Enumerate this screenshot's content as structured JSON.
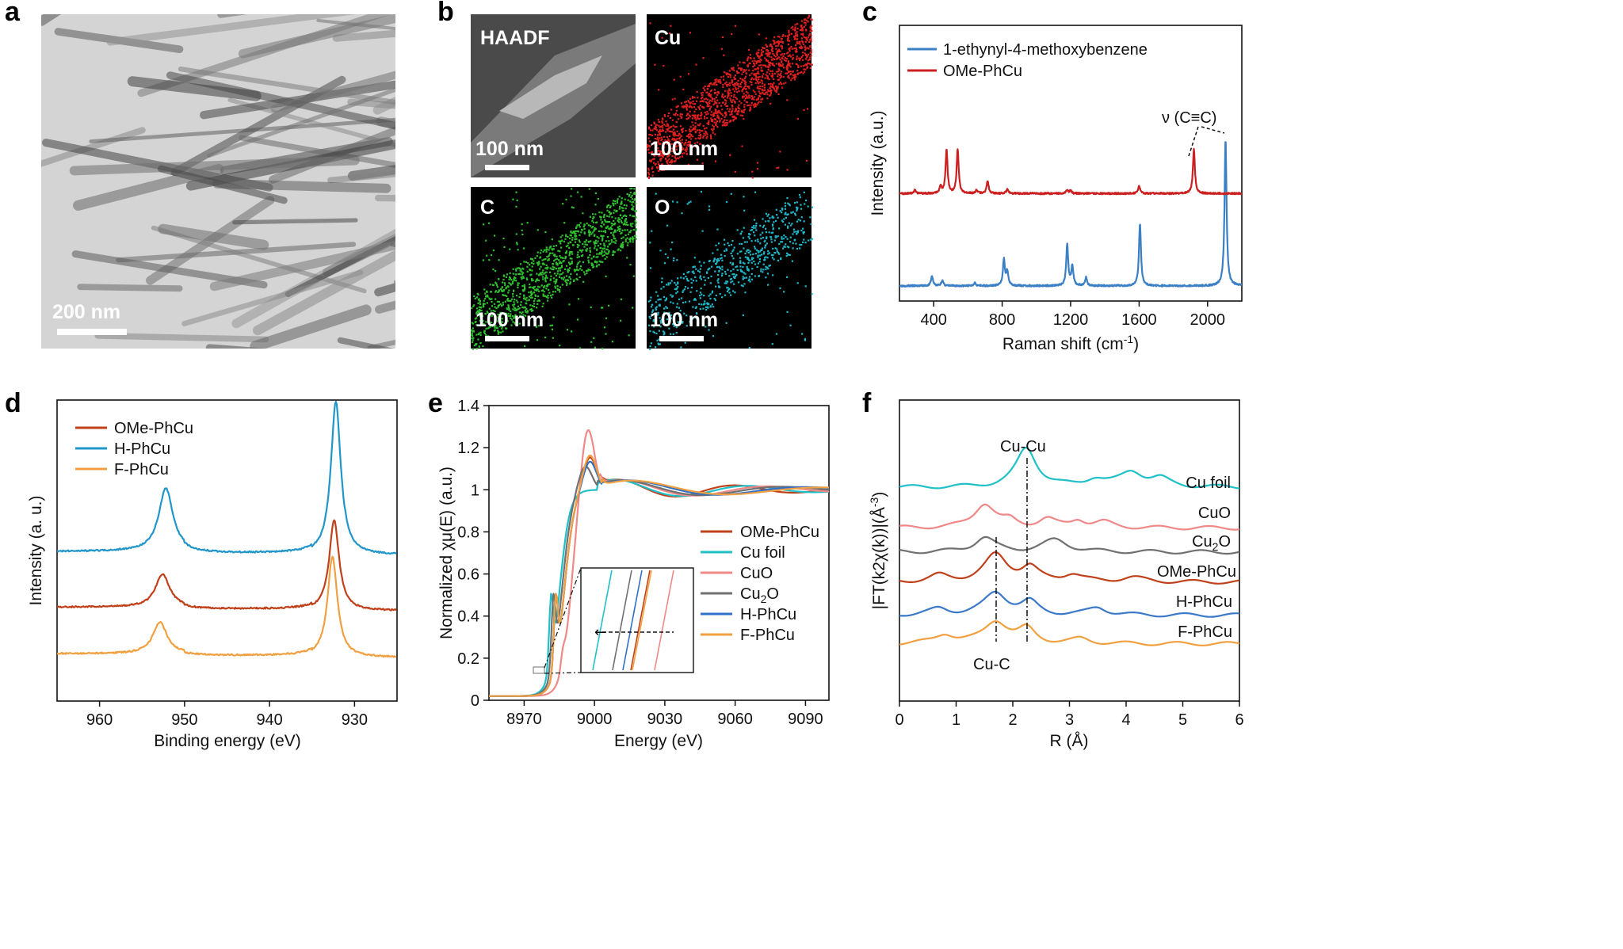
{
  "panels": {
    "a": {
      "letter": "a",
      "scale_label": "200 nm"
    },
    "b": {
      "letter": "b",
      "tiles": [
        {
          "label": "HAADF",
          "scale": "100 nm",
          "color": "#9a9a9a"
        },
        {
          "label": "Cu",
          "scale": "100 nm",
          "color": "#e02020"
        },
        {
          "label": "C",
          "scale": "100 nm",
          "color": "#30c030"
        },
        {
          "label": "O",
          "scale": "100 nm",
          "color": "#20b8c8"
        }
      ]
    },
    "c": {
      "letter": "c"
    },
    "d": {
      "letter": "d"
    },
    "e": {
      "letter": "e",
      "zoom_arrow": "←"
    },
    "f": {
      "letter": "f"
    }
  },
  "chart_data": [
    {
      "id": "c",
      "type": "line",
      "xlabel": "Raman shift (cm",
      "xlabel_sup": "-1",
      "xlabel_end": ")",
      "ylabel": "Intensity (a.u.)",
      "xlim": [
        200,
        2200
      ],
      "ylim": [
        0,
        10
      ],
      "xticks": [
        400,
        800,
        1200,
        1600,
        2000
      ],
      "annotation": "ν (C≡C)",
      "series": [
        {
          "name": "1-ethynyl-4-methoxybenzene",
          "color": "#3b7fc4",
          "baseline": 0.55,
          "peaks": [
            [
              390,
              0.35
            ],
            [
              450,
              0.2
            ],
            [
              640,
              0.12
            ],
            [
              810,
              0.95
            ],
            [
              830,
              0.5
            ],
            [
              1180,
              1.5
            ],
            [
              1210,
              0.7
            ],
            [
              1290,
              0.3
            ],
            [
              1605,
              2.25
            ],
            [
              2105,
              5.3
            ]
          ]
        },
        {
          "name": "OMe-PhCu",
          "color": "#cc2020",
          "baseline": 3.9,
          "peaks": [
            [
              290,
              0.12
            ],
            [
              440,
              0.25
            ],
            [
              475,
              1.6
            ],
            [
              540,
              1.6
            ],
            [
              650,
              0.12
            ],
            [
              715,
              0.45
            ],
            [
              830,
              0.15
            ],
            [
              1180,
              0.12
            ],
            [
              1200,
              0.1
            ],
            [
              1600,
              0.28
            ],
            [
              1920,
              1.6
            ]
          ]
        }
      ]
    },
    {
      "id": "d",
      "type": "line",
      "xlabel": "Binding energy (eV)",
      "ylabel": "Intensity (a. u.)",
      "xlim": [
        965,
        925
      ],
      "ylim": [
        0,
        10
      ],
      "xreversed": true,
      "xticks": [
        960,
        950,
        940,
        930
      ],
      "series": [
        {
          "name": "OMe-PhCu",
          "color": "#c0401a",
          "baseline": 3.0,
          "peaks": [
            [
              952.6,
              1.1,
              1.0
            ],
            [
              932.4,
              3.0,
              0.7
            ]
          ]
        },
        {
          "name": "H-PhCu",
          "color": "#2196c8",
          "baseline": 4.85,
          "peaks": [
            [
              952.2,
              2.1,
              1.0
            ],
            [
              932.2,
              5.1,
              0.7
            ]
          ]
        },
        {
          "name": "F-PhCu",
          "color": "#f0a040",
          "baseline": 1.45,
          "peaks": [
            [
              952.9,
              1.05,
              1.0
            ],
            [
              932.6,
              3.35,
              0.7
            ]
          ]
        }
      ]
    },
    {
      "id": "e",
      "type": "line",
      "xlabel": "Energy (eV)",
      "ylabel": "Normalized χμ(E) (a.u.)",
      "xlim": [
        8955,
        9100
      ],
      "ylim": [
        0,
        1.4
      ],
      "xticks": [
        8970,
        9000,
        9030,
        9060,
        9090
      ],
      "yticks": [
        0,
        0.2,
        0.4,
        0.6,
        0.8,
        1,
        1.2,
        1.4
      ],
      "ytick_labels": [
        "0",
        "0.2",
        "0.4",
        "0.6",
        "0.8",
        "1",
        "1.2",
        "1.4"
      ],
      "series": [
        {
          "name": "OMe-PhCu",
          "color": "#c0401a",
          "edge": 8981,
          "main": 1.14,
          "mainx": 8998
        },
        {
          "name": "Cu foil",
          "color": "#20c0c8",
          "edge": 8979,
          "main": 0.98,
          "mainx": 8996
        },
        {
          "name": "CuO",
          "color": "#f08888",
          "edge": 8984,
          "main": 1.3,
          "mainx": 8997
        },
        {
          "name": "Cu",
          "name_sub": "2",
          "name_end": "O",
          "color": "#707070",
          "edge": 8980,
          "main": 1.1,
          "mainx": 8996
        },
        {
          "name": "H-PhCu",
          "color": "#3070c8",
          "edge": 8981,
          "main": 1.12,
          "mainx": 8998
        },
        {
          "name": "F-PhCu",
          "color": "#f0a040",
          "edge": 8981,
          "main": 1.15,
          "mainx": 8998
        }
      ]
    },
    {
      "id": "f",
      "type": "line",
      "xlabel": "R (Å)",
      "ylabel": "|FT(k2χ(k))|(Å",
      "ylabel_sup": "-3",
      "ylabel_end": ")",
      "xlim": [
        0,
        6
      ],
      "ylim": [
        0,
        10
      ],
      "xticks": [
        0,
        1,
        2,
        3,
        4,
        5,
        6
      ],
      "annotations": [
        "Cu-Cu",
        "Cu-C"
      ],
      "series": [
        {
          "name": "Cu foil",
          "color": "#20c0c8",
          "baseline": 7.1,
          "peaks": [
            [
              2.24,
              1.3,
              0.22
            ],
            [
              3.45,
              0.25,
              0.2
            ],
            [
              4.1,
              0.5,
              0.25
            ],
            [
              4.6,
              0.25,
              0.2
            ]
          ]
        },
        {
          "name": "CuO",
          "color": "#f08888",
          "baseline": 5.75,
          "peaks": [
            [
              1.5,
              0.8,
              0.22
            ],
            [
              1.95,
              0.2,
              0.15
            ],
            [
              2.6,
              0.28,
              0.18
            ],
            [
              3.15,
              0.25,
              0.15
            ],
            [
              3.6,
              0.18,
              0.2
            ]
          ]
        },
        {
          "name": "Cu",
          "name_sub": "2",
          "name_end": "O",
          "color": "#707070",
          "baseline": 4.95,
          "peaks": [
            [
              1.5,
              0.48,
              0.22
            ],
            [
              2.75,
              0.4,
              0.28
            ]
          ]
        },
        {
          "name": "OMe-PhCu",
          "color": "#c0401a",
          "baseline": 3.95,
          "peaks": [
            [
              0.7,
              0.2,
              0.2
            ],
            [
              1.7,
              0.9,
              0.25
            ],
            [
              2.3,
              0.45,
              0.18
            ],
            [
              3.05,
              0.25,
              0.2
            ],
            [
              4.1,
              0.15,
              0.25
            ]
          ]
        },
        {
          "name": "H-PhCu",
          "color": "#3b78c8",
          "baseline": 2.85,
          "peaks": [
            [
              0.7,
              0.2,
              0.2
            ],
            [
              1.7,
              0.75,
              0.25
            ],
            [
              2.3,
              0.4,
              0.18
            ],
            [
              3.5,
              0.25,
              0.2
            ]
          ]
        },
        {
          "name": "F-PhCu",
          "color": "#f0a040",
          "baseline": 1.9,
          "peaks": [
            [
              0.8,
              0.3,
              0.2
            ],
            [
              1.7,
              0.75,
              0.25
            ],
            [
              2.25,
              0.45,
              0.18
            ],
            [
              3.2,
              0.15,
              0.2
            ]
          ]
        }
      ]
    }
  ]
}
